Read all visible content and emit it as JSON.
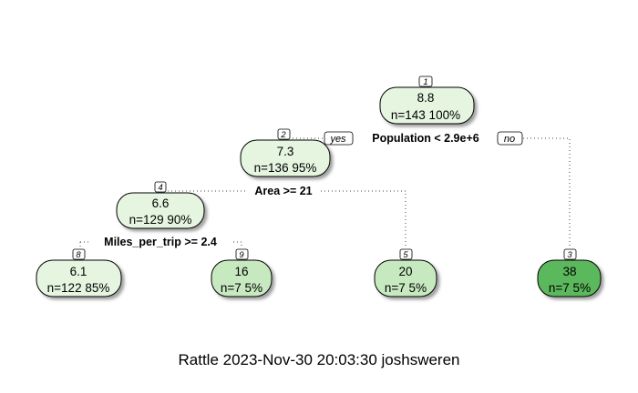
{
  "caption": "Rattle 2023-Nov-30 20:03:30 joshsweren",
  "nodes": [
    {
      "id": "1",
      "value": "8.8",
      "count": "n=143  100%",
      "fill": "#e5f5e0"
    },
    {
      "id": "2",
      "value": "7.3",
      "count": "n=136  95%",
      "fill": "#e5f5e0"
    },
    {
      "id": "4",
      "value": "6.6",
      "count": "n=129  90%",
      "fill": "#e5f5e0"
    },
    {
      "id": "8",
      "value": "6.1",
      "count": "n=122  85%",
      "fill": "#e5f5e0"
    },
    {
      "id": "9",
      "value": "16",
      "count": "n=7  5%",
      "fill": "#c7e9c0"
    },
    {
      "id": "5",
      "value": "20",
      "count": "n=7  5%",
      "fill": "#c7e9c0"
    },
    {
      "id": "3",
      "value": "38",
      "count": "n=7  5%",
      "fill": "#5cb85c"
    }
  ],
  "splits": {
    "root": "Population < 2.9e+6",
    "node2": "Area >= 21",
    "node4": "Miles_per_trip >= 2.4"
  },
  "branch_labels": {
    "yes": "yes",
    "no": "no"
  }
}
